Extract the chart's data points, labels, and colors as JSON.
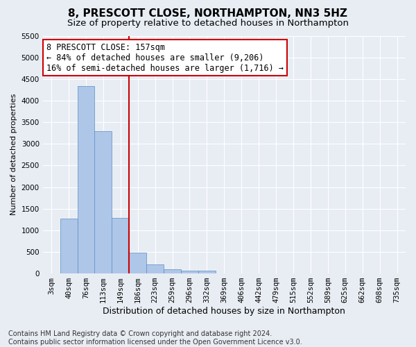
{
  "title": "8, PRESCOTT CLOSE, NORTHAMPTON, NN3 5HZ",
  "subtitle": "Size of property relative to detached houses in Northampton",
  "xlabel": "Distribution of detached houses by size in Northampton",
  "ylabel": "Number of detached properties",
  "categories": [
    "3sqm",
    "40sqm",
    "76sqm",
    "113sqm",
    "149sqm",
    "186sqm",
    "223sqm",
    "259sqm",
    "296sqm",
    "332sqm",
    "369sqm",
    "406sqm",
    "442sqm",
    "479sqm",
    "515sqm",
    "552sqm",
    "589sqm",
    "625sqm",
    "662sqm",
    "698sqm",
    "735sqm"
  ],
  "bar_heights": [
    0,
    1270,
    4330,
    3300,
    1290,
    490,
    210,
    90,
    60,
    60,
    0,
    0,
    0,
    0,
    0,
    0,
    0,
    0,
    0,
    0,
    0
  ],
  "bar_color": "#aec6e8",
  "bar_edgecolor": "#5a8fc0",
  "background_color": "#e8edf4",
  "grid_color": "#ffffff",
  "vline_x": 4.5,
  "vline_color": "#cc0000",
  "annotation_line1": "8 PRESCOTT CLOSE: 157sqm",
  "annotation_line2": "← 84% of detached houses are smaller (9,206)",
  "annotation_line3": "16% of semi-detached houses are larger (1,716) →",
  "annotation_box_color": "#ffffff",
  "annotation_box_edgecolor": "#cc0000",
  "ylim_max": 5500,
  "yticks": [
    0,
    500,
    1000,
    1500,
    2000,
    2500,
    3000,
    3500,
    4000,
    4500,
    5000,
    5500
  ],
  "footer_line1": "Contains HM Land Registry data © Crown copyright and database right 2024.",
  "footer_line2": "Contains public sector information licensed under the Open Government Licence v3.0.",
  "title_fontsize": 11,
  "subtitle_fontsize": 9.5,
  "xlabel_fontsize": 9,
  "ylabel_fontsize": 8,
  "tick_fontsize": 7.5,
  "annotation_fontsize": 8.5,
  "footer_fontsize": 7
}
